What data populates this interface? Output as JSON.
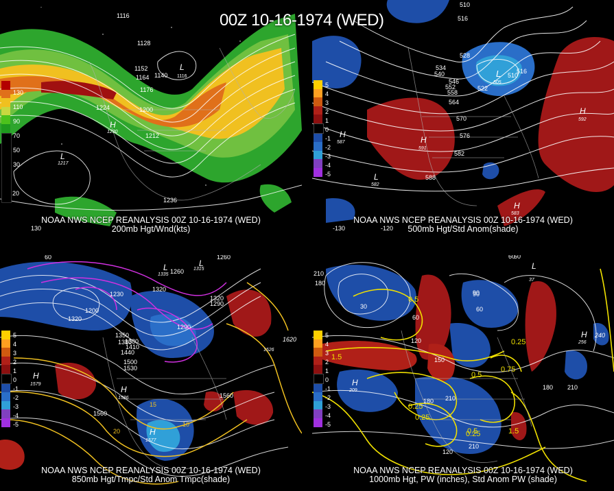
{
  "title": "00Z 10-16-1974 (WED)",
  "panels": [
    {
      "id": "top-left",
      "caption_line1": "NOAA NWS NCEP REANALYSIS 00Z 10-16-1974 (WED)",
      "caption_line2": "200mb Hgt/Wnd(kts)",
      "legend": [
        "130",
        "110",
        "90",
        "70",
        "50",
        "30"
      ],
      "legend_colors": [
        "#b30000",
        "#e0701a",
        "#f0c020",
        "#c8d840",
        "#4cc21c",
        "#1e9a1e"
      ],
      "contour_labels": [
        "1116",
        "1128",
        "1152",
        "1164",
        "1140",
        "1176",
        "1200",
        "1224",
        "1212",
        "1236",
        "1116",
        "1116"
      ],
      "centers": [
        {
          "kind": "H",
          "value": "1230"
        },
        {
          "kind": "L",
          "value": "1217"
        },
        {
          "kind": "L",
          "value": "1116"
        }
      ],
      "edge_labels": [
        "20",
        "130"
      ]
    },
    {
      "id": "top-right",
      "caption_line1": "NOAA NWS NCEP REANALYSIS 00Z 10-16-1974 (WED)",
      "caption_line2": "500mb Hgt/Std Anom(shade)",
      "legend": [
        "5",
        "4",
        "3",
        "2",
        "1",
        "0",
        "-1",
        "-2",
        "-3",
        "-4",
        "-5"
      ],
      "legend_colors": [
        "#ffd000",
        "#ffa020",
        "#d05a10",
        "#b02018",
        "#8c1010",
        "#000000",
        "#1e4ea8",
        "#2a6ec8",
        "#30a0d8",
        "#8040c0",
        "#a030e0"
      ],
      "contour_labels": [
        "510",
        "516",
        "528",
        "534",
        "540",
        "546",
        "552",
        "558",
        "564",
        "570",
        "576",
        "582",
        "588",
        "510",
        "516",
        "522"
      ],
      "centers": [
        {
          "kind": "L",
          "value": "505"
        },
        {
          "kind": "H",
          "value": "592"
        },
        {
          "kind": "H",
          "value": "591"
        },
        {
          "kind": "H",
          "value": "587"
        },
        {
          "kind": "L",
          "value": "582"
        },
        {
          "kind": "H",
          "value": "583"
        }
      ],
      "edge_labels": [
        "-130",
        "-120"
      ]
    },
    {
      "id": "bottom-left",
      "caption_line1": "NOAA NWS NCEP REANALYSIS 00Z 10-16-1974 (WED)",
      "caption_line2": "850mb Hgt/Tmpc/Std Anom Tmpc(shade)",
      "legend": [
        "5",
        "4",
        "3",
        "2",
        "1",
        "0",
        "-1",
        "-2",
        "-3",
        "-4",
        "-5"
      ],
      "legend_colors": [
        "#ffd000",
        "#ffa020",
        "#d05a10",
        "#b02018",
        "#8c1010",
        "#000000",
        "#1e4ea8",
        "#2a6ec8",
        "#30a0d8",
        "#8040c0",
        "#a030e0"
      ],
      "contour_labels": [
        "1260",
        "1260",
        "1230",
        "1320",
        "1320",
        "1290",
        "1200",
        "1350",
        "1380",
        "1410",
        "1440",
        "1500",
        "1530",
        "1560",
        "1560",
        "1380",
        "1290",
        "1320",
        "15",
        "10",
        "20",
        "60"
      ],
      "centers": [
        {
          "kind": "L",
          "value": "1315"
        },
        {
          "kind": "L",
          "value": "1335"
        },
        {
          "kind": "H",
          "value": "1579"
        },
        {
          "kind": "H",
          "value": "1586"
        },
        {
          "kind": "H",
          "value": "1577"
        },
        {
          "kind": "H",
          "value": "1620"
        },
        {
          "kind": "H",
          "value": "1526"
        }
      ],
      "edge_labels": [
        "60"
      ]
    },
    {
      "id": "bottom-right",
      "caption_line1": "NOAA NWS NCEP REANALYSIS 00Z 10-16-1974 (WED)",
      "caption_line2": "1000mb Hgt, PW (inches), Std Anom PW (shade)",
      "legend": [
        "5",
        "4",
        "3",
        "2",
        "1",
        "0",
        "-1",
        "-2",
        "-3",
        "-4",
        "-5"
      ],
      "legend_colors": [
        "#ffd000",
        "#ffa020",
        "#d05a10",
        "#b02018",
        "#8c1010",
        "#000000",
        "#1e4ea8",
        "#2a6ec8",
        "#30a0d8",
        "#8040c0",
        "#a030e0"
      ],
      "contour_labels": [
        "210",
        "180",
        "60",
        "90",
        "120",
        "150",
        "60",
        "30",
        "0.5",
        "0.25",
        "1.5",
        "0.5",
        "0.25",
        "0.75",
        "0.5",
        "0.25",
        "1.5",
        "180",
        "210",
        "120",
        "180",
        "210",
        "210",
        "90",
        "60",
        "0.25"
      ],
      "centers": [
        {
          "kind": "H",
          "value": "209"
        },
        {
          "kind": "H",
          "value": "256"
        },
        {
          "kind": "L",
          "value": "37"
        },
        {
          "kind": "H",
          "value": "240"
        }
      ],
      "edge_labels": [
        "60"
      ]
    }
  ]
}
